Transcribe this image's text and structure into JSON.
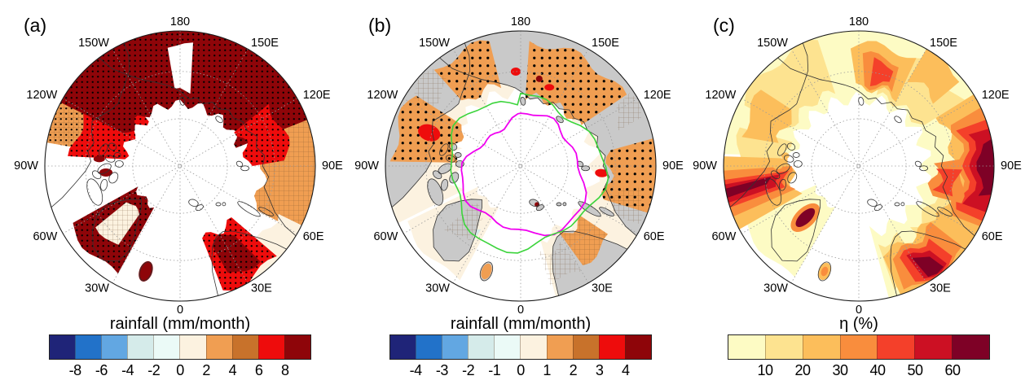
{
  "figure": {
    "kind": "three-panel polar stereographic Arctic maps",
    "panels": [
      {
        "label": "(a)",
        "colorbar": {
          "title": "rainfall (mm/month)",
          "tick_labels": [
            "-8",
            "-6",
            "-4",
            "-2",
            "0",
            "2",
            "4",
            "6",
            "8"
          ],
          "colors": [
            "#1f2478",
            "#2272c9",
            "#62a7e2",
            "#d5ebea",
            "#ebfaf7",
            "#fcf2e0",
            "#f09e52",
            "#c8722b",
            "#ee0c0c",
            "#8e0509"
          ]
        }
      },
      {
        "label": "(b)",
        "colorbar": {
          "title": "rainfall (mm/month)",
          "tick_labels": [
            "-4",
            "-3",
            "-2",
            "-1",
            "0",
            "1",
            "2",
            "3",
            "4"
          ],
          "colors": [
            "#1f2478",
            "#2272c9",
            "#62a7e2",
            "#d5ebea",
            "#ebfaf7",
            "#fcf2e0",
            "#f09e52",
            "#c8722b",
            "#ee0c0c",
            "#8e0509"
          ]
        }
      },
      {
        "label": "(c)",
        "colorbar": {
          "title": "η (%)",
          "tick_labels": [
            "10",
            "20",
            "30",
            "40",
            "50",
            "60"
          ],
          "colors": [
            "#fdfbc4",
            "#fde390",
            "#fcbe5b",
            "#f98d3d",
            "#f4402a",
            "#cc1023",
            "#7e0126"
          ]
        }
      }
    ],
    "longitude_labels": [
      {
        "text": "180",
        "angle": 0
      },
      {
        "text": "150E",
        "angle": 30
      },
      {
        "text": "120E",
        "angle": 60
      },
      {
        "text": "90E",
        "angle": 90
      },
      {
        "text": "60E",
        "angle": 120
      },
      {
        "text": "30E",
        "angle": 150
      },
      {
        "text": "0",
        "angle": 180
      },
      {
        "text": "30W",
        "angle": 210
      },
      {
        "text": "60W",
        "angle": 240
      },
      {
        "text": "90W",
        "angle": 270
      },
      {
        "text": "120W",
        "angle": 300
      },
      {
        "text": "150W",
        "angle": 330
      }
    ],
    "overlays": {
      "sea_ice_edge_magenta": "#f000f0",
      "sea_ice_edge_green": "#3cd43c",
      "land_fill_panel_b": "#c9c9c9",
      "coastline": "#333333",
      "stipple": "#000000",
      "hatch": "#6b4a2a",
      "graticule": "#9a9a9a"
    }
  },
  "chart_data": [
    {
      "type": "heatmap",
      "subtype": "polar-stereographic-map",
      "panel": "(a)",
      "title": "rainfall (mm/month)",
      "colorbar_ticks": [
        -8,
        -6,
        -4,
        -2,
        0,
        2,
        4,
        6,
        8
      ],
      "palette": [
        "#1f2478",
        "#2272c9",
        "#62a7e2",
        "#d5ebea",
        "#ebfaf7",
        "#fcf2e0",
        "#f09e52",
        "#c8722b",
        "#ee0c0c",
        "#8e0509"
      ],
      "annotations": [
        "stippling-dots",
        "cross-hatching"
      ]
    },
    {
      "type": "heatmap",
      "subtype": "polar-stereographic-map",
      "panel": "(b)",
      "title": "rainfall (mm/month)",
      "colorbar_ticks": [
        -4,
        -3,
        -2,
        -1,
        0,
        1,
        2,
        3,
        4
      ],
      "palette": [
        "#1f2478",
        "#2272c9",
        "#62a7e2",
        "#d5ebea",
        "#ebfaf7",
        "#fcf2e0",
        "#f09e52",
        "#c8722b",
        "#ee0c0c",
        "#8e0509"
      ],
      "annotations": [
        "stippling-dots",
        "cross-hatching",
        "magenta-contour-line",
        "green-contour-line",
        "gray-land-mask"
      ]
    },
    {
      "type": "heatmap",
      "subtype": "polar-stereographic-map",
      "panel": "(c)",
      "title": "η (%)",
      "colorbar_ticks": [
        10,
        20,
        30,
        40,
        50,
        60
      ],
      "palette": [
        "#fdfbc4",
        "#fde390",
        "#fcbe5b",
        "#f98d3d",
        "#f4402a",
        "#cc1023",
        "#7e0126"
      ]
    }
  ]
}
